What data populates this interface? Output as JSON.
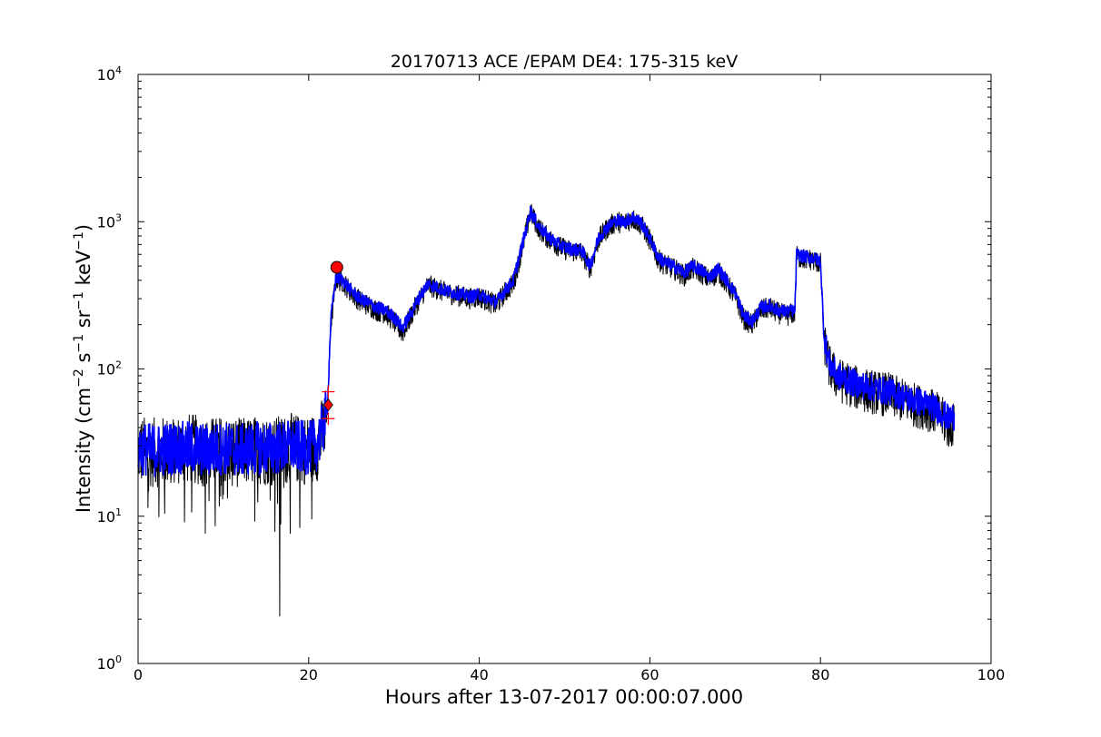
{
  "chart_data": {
    "type": "line",
    "title": "20170713 ACE /EPAM DE4: 175-315 keV",
    "xlabel": "Hours after 13-07-2017 00:00:07.000",
    "ylabel": "Intensity (cm⁻² s⁻¹ sr⁻¹ keV⁻¹)",
    "ylabel_parts": {
      "lead": "Intensity (cm",
      "exp1": "−2",
      "s": " s",
      "exp2": "−1",
      "sr": " sr",
      "exp3": "−1",
      "kev": " keV",
      "exp4": "−1",
      "tail": ")"
    },
    "xlim": [
      0,
      100
    ],
    "ylim": [
      1,
      10000
    ],
    "yscale": "log",
    "grid": false,
    "x_ticks": [
      {
        "value": 0,
        "label": "0"
      },
      {
        "value": 20,
        "label": "20"
      },
      {
        "value": 40,
        "label": "40"
      },
      {
        "value": 60,
        "label": "60"
      },
      {
        "value": 80,
        "label": "80"
      },
      {
        "value": 100,
        "label": "100"
      }
    ],
    "y_ticks": [
      {
        "value": 1,
        "base": "10",
        "exp": "0"
      },
      {
        "value": 10,
        "base": "10",
        "exp": "1"
      },
      {
        "value": 100,
        "base": "10",
        "exp": "2"
      },
      {
        "value": 1000,
        "base": "10",
        "exp": "3"
      },
      {
        "value": 10000,
        "base": "10",
        "exp": "4"
      }
    ],
    "series": [
      {
        "role": "raw",
        "color": "#000000",
        "x": [
          0,
          2,
          4,
          6,
          8,
          10,
          12,
          14,
          16,
          16.6,
          18,
          20,
          21,
          21.8,
          22.2,
          22.6,
          23.2,
          24,
          25,
          26,
          27,
          28,
          29,
          30,
          31,
          32,
          33,
          34,
          35,
          36,
          37,
          38,
          39,
          40,
          41,
          42,
          43,
          44,
          45,
          46,
          47,
          48,
          49,
          50,
          51,
          52,
          53,
          54,
          55,
          56,
          57,
          58,
          59,
          60,
          61,
          62,
          63,
          64,
          65,
          66,
          67,
          68,
          69,
          70,
          71,
          72,
          73,
          74,
          75,
          76,
          77,
          77.2,
          78,
          79,
          80,
          80.4,
          81,
          82,
          83,
          84,
          85,
          86,
          87,
          88,
          89,
          90,
          91,
          92,
          93,
          94,
          95,
          95.7
        ],
        "y": [
          28,
          27,
          28,
          29,
          27,
          28,
          27,
          28,
          28,
          28,
          29,
          28,
          30,
          40,
          52,
          200,
          410,
          390,
          330,
          290,
          270,
          250,
          240,
          210,
          175,
          230,
          300,
          370,
          350,
          330,
          320,
          310,
          300,
          310,
          290,
          270,
          330,
          380,
          650,
          1150,
          900,
          780,
          700,
          650,
          630,
          620,
          480,
          760,
          900,
          1000,
          980,
          1050,
          950,
          750,
          550,
          500,
          470,
          430,
          480,
          450,
          400,
          460,
          380,
          310,
          220,
          200,
          250,
          260,
          240,
          230,
          240,
          580,
          560,
          550,
          520,
          160,
          105,
          85,
          80,
          75,
          72,
          70,
          68,
          67,
          63,
          60,
          57,
          55,
          52,
          48,
          40,
          42
        ]
      },
      {
        "role": "smoothed",
        "color": "#0000ff",
        "x": [
          0,
          2,
          4,
          6,
          8,
          10,
          12,
          14,
          16,
          18,
          20,
          21,
          21.8,
          22.2,
          22.6,
          23.2,
          24,
          25,
          26,
          27,
          28,
          29,
          30,
          31,
          32,
          33,
          34,
          35,
          36,
          37,
          38,
          39,
          40,
          41,
          42,
          43,
          44,
          45,
          46,
          47,
          48,
          49,
          50,
          51,
          52,
          53,
          54,
          55,
          56,
          57,
          58,
          59,
          60,
          61,
          62,
          63,
          64,
          65,
          66,
          67,
          68,
          69,
          70,
          71,
          72,
          73,
          74,
          75,
          76,
          77,
          77.2,
          78,
          79,
          80,
          80.4,
          81,
          82,
          83,
          84,
          85,
          86,
          87,
          88,
          89,
          90,
          91,
          92,
          93,
          94,
          95,
          95.7
        ],
        "y": [
          29,
          28,
          29,
          29,
          28,
          29,
          28,
          29,
          29,
          30,
          29,
          31,
          42,
          55,
          220,
          420,
          400,
          340,
          300,
          280,
          260,
          250,
          225,
          190,
          240,
          310,
          380,
          360,
          340,
          330,
          320,
          310,
          320,
          300,
          285,
          340,
          400,
          680,
          1180,
          920,
          800,
          720,
          670,
          650,
          640,
          500,
          780,
          920,
          1020,
          1000,
          1080,
          980,
          770,
          570,
          520,
          490,
          450,
          500,
          470,
          420,
          480,
          400,
          330,
          230,
          210,
          260,
          270,
          250,
          245,
          250,
          600,
          580,
          570,
          540,
          170,
          110,
          90,
          85,
          80,
          77,
          75,
          72,
          71,
          67,
          64,
          61,
          59,
          56,
          52,
          46,
          48
        ]
      }
    ],
    "markers": [
      {
        "kind": "circle",
        "x": 23.3,
        "y": 490,
        "color": "#ff0000"
      },
      {
        "kind": "diamond",
        "x": 22.3,
        "y": 57,
        "color": "#ff0000"
      },
      {
        "kind": "plus",
        "x": 22.3,
        "y": 70,
        "color": "#ff0000"
      },
      {
        "kind": "plus",
        "x": 22.3,
        "y": 46,
        "color": "#ff0000"
      }
    ]
  }
}
